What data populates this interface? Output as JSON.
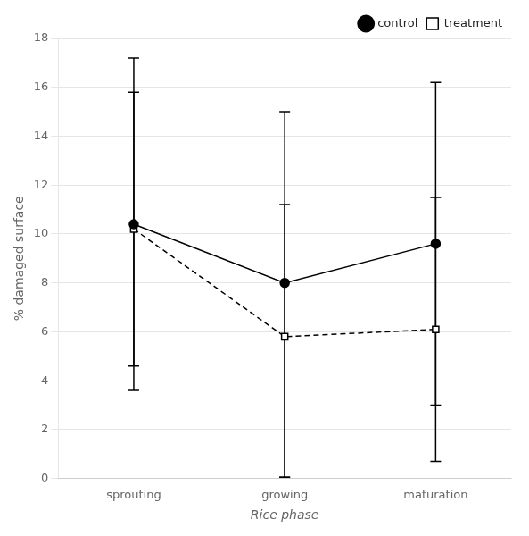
{
  "chart_data": {
    "type": "line",
    "xlabel": "Rice phase",
    "ylabel": "% damaged surface",
    "categories": [
      "sprouting",
      "growing",
      "maturation"
    ],
    "series": [
      {
        "name": "control",
        "color": "#000000",
        "marker": "circle",
        "line_style": "solid",
        "values": [
          10.4,
          8.0,
          9.6
        ],
        "ci_upper": [
          17.2,
          15.0,
          16.2
        ],
        "ci_lower": [
          3.6,
          0.05,
          3.0
        ]
      },
      {
        "name": "treatment",
        "color": "#000000",
        "marker": "open_square",
        "line_style": "dashed",
        "values": [
          10.2,
          5.8,
          6.1
        ],
        "ci_upper": [
          15.8,
          11.2,
          11.5
        ],
        "ci_lower": [
          4.6,
          0.05,
          0.7
        ]
      }
    ],
    "ylim": [
      0,
      18
    ],
    "yticks": [
      0,
      2,
      4,
      6,
      8,
      10,
      12,
      14,
      16,
      18
    ],
    "grid": "y",
    "legend": "upper right"
  }
}
